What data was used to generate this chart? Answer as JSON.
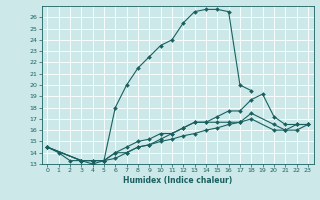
{
  "xlabel": "Humidex (Indice chaleur)",
  "bg_color": "#cce8e8",
  "grid_color": "#ffffff",
  "line_color": "#1a6060",
  "xlim": [
    -0.5,
    23.5
  ],
  "ylim": [
    13,
    27
  ],
  "xticks": [
    0,
    1,
    2,
    3,
    4,
    5,
    6,
    7,
    8,
    9,
    10,
    11,
    12,
    13,
    14,
    15,
    16,
    17,
    18,
    19,
    20,
    21,
    22,
    23
  ],
  "yticks": [
    13,
    14,
    15,
    16,
    17,
    18,
    19,
    20,
    21,
    22,
    23,
    24,
    25,
    26
  ],
  "series": [
    {
      "x": [
        0,
        1,
        2,
        3,
        4,
        5,
        6,
        7,
        8,
        9,
        10,
        11,
        12,
        13,
        14,
        15,
        16,
        17,
        18
      ],
      "y": [
        14.5,
        14.0,
        13.3,
        13.3,
        13.0,
        13.3,
        18.0,
        20.0,
        21.5,
        22.5,
        23.5,
        24.0,
        25.5,
        26.5,
        26.7,
        26.7,
        26.5,
        20.0,
        19.5
      ]
    },
    {
      "x": [
        0,
        3,
        4,
        5,
        6,
        7,
        8,
        9,
        10,
        11,
        12,
        13,
        14,
        15,
        16,
        17,
        18,
        19,
        20,
        21,
        22,
        23
      ],
      "y": [
        14.5,
        13.3,
        13.3,
        13.3,
        14.0,
        14.5,
        15.0,
        15.2,
        15.7,
        15.7,
        16.2,
        16.7,
        16.7,
        17.2,
        17.7,
        17.7,
        18.7,
        19.2,
        17.2,
        16.5,
        16.5,
        16.5
      ]
    },
    {
      "x": [
        0,
        3,
        4,
        5,
        6,
        7,
        8,
        9,
        10,
        11,
        12,
        13,
        14,
        15,
        16,
        17,
        18,
        20,
        21,
        22,
        23
      ],
      "y": [
        14.5,
        13.3,
        13.3,
        13.3,
        14.0,
        14.0,
        14.5,
        14.7,
        15.2,
        15.7,
        16.2,
        16.7,
        16.7,
        16.7,
        16.7,
        16.7,
        17.5,
        16.5,
        16.0,
        16.5,
        16.5
      ]
    },
    {
      "x": [
        0,
        3,
        4,
        5,
        6,
        7,
        8,
        9,
        10,
        11,
        12,
        13,
        14,
        15,
        16,
        17,
        18,
        20,
        21,
        22,
        23
      ],
      "y": [
        14.5,
        13.3,
        13.3,
        13.3,
        13.5,
        14.0,
        14.5,
        14.7,
        15.0,
        15.2,
        15.5,
        15.7,
        16.0,
        16.2,
        16.5,
        16.7,
        17.0,
        16.0,
        16.0,
        16.0,
        16.5
      ]
    }
  ]
}
